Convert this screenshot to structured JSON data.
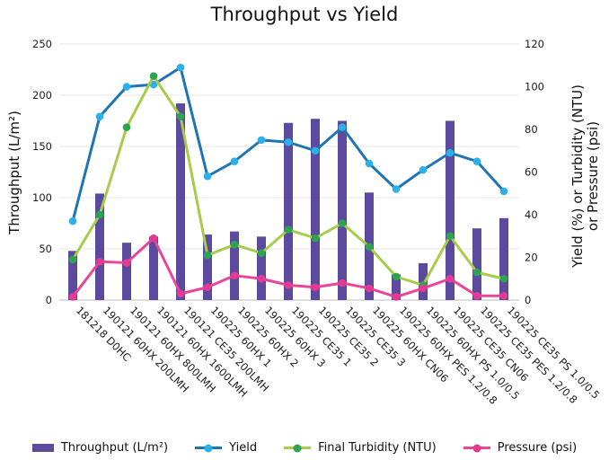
{
  "title": "Throughput vs Yield",
  "axes": {
    "left": {
      "label": "Throughput (L/m²)",
      "ticks": [
        0,
        50,
        100,
        150,
        200,
        250
      ]
    },
    "right": {
      "label_line1": "Yield (%) or Turbidity (NTU)",
      "label_line2": "or Pressure (psi)",
      "ticks": [
        0,
        20,
        40,
        60,
        80,
        100,
        120
      ]
    }
  },
  "chart_data": {
    "type": "combo-bar-line",
    "title": "Throughput vs Yield",
    "categories": [
      "181218 D0HC",
      "190121 60HX 200LMH",
      "190121 60HX 800LMH",
      "190121 60HX 1600LMH",
      "190121 CE35 200LMH",
      "190225 60HX 1",
      "190225 60HX 2",
      "190225 60HX 3",
      "190225 CE35 1",
      "190225 CE35 2",
      "190225 CE35 3",
      "190225 60HX CN06",
      "190225 60HX PES 1.2/0.8",
      "190225 60HX PS 1.0/0.5",
      "190225 CE35 CN06",
      "190225 CE35 PES 1.2/0.8",
      "190225 CE35 PS 1.0/0.5"
    ],
    "series": [
      {
        "name": "Throughput (L/m²)",
        "type": "bar",
        "axis": "left",
        "color": "#5b4a9d",
        "values": [
          48,
          104,
          56,
          62,
          192,
          64,
          67,
          62,
          173,
          177,
          175,
          105,
          25,
          36,
          175,
          70,
          80
        ]
      },
      {
        "name": "Yield",
        "type": "line",
        "axis": "right",
        "color": "#1f74b4",
        "marker_color": "#2cb0e8",
        "values": [
          37,
          86,
          100,
          101,
          109,
          58,
          65,
          75,
          74,
          70,
          81,
          64,
          52,
          61,
          69,
          65,
          51
        ]
      },
      {
        "name": "Final Turbidity (NTU)",
        "type": "line",
        "axis": "right",
        "color": "#a6cc49",
        "marker_color": "#2ca64e",
        "values": [
          19,
          40,
          81,
          105,
          86,
          21,
          26,
          22,
          33,
          29,
          36,
          25,
          11,
          7,
          30,
          13,
          10
        ]
      },
      {
        "name": "Pressure (psi)",
        "type": "line",
        "axis": "right",
        "color": "#e9459a",
        "marker_color": "#e63a92",
        "values": [
          1.5,
          18,
          17.5,
          29,
          3,
          6,
          11.5,
          10,
          7,
          6,
          8,
          5.5,
          1.5,
          5.5,
          10,
          2,
          2
        ]
      }
    ],
    "ylabel_left": "Throughput (L/m²)",
    "ylim_left": [
      0,
      250
    ],
    "ylabel_right": "Yield (%) or Turbidity (NTU) or Pressure (psi)",
    "ylim_right": [
      0,
      120
    ],
    "grid": true,
    "gridline_color": "#e7e7e7",
    "axisline_color": "#c9c9c9",
    "text_color": "#1a1a1a",
    "legend_position": "bottom",
    "xtick_rotation_deg": 45
  }
}
